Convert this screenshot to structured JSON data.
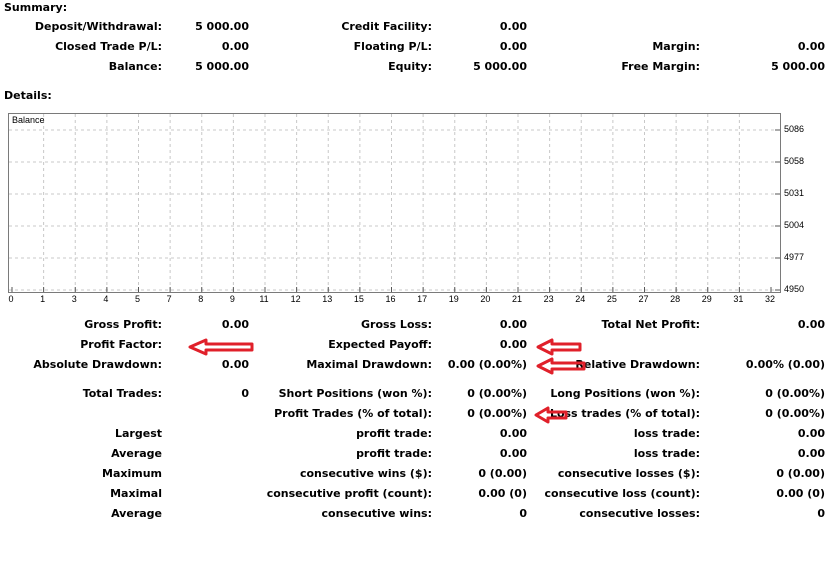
{
  "summary": {
    "title": "Summary:",
    "rows": [
      [
        {
          "label": "Deposit/Withdrawal:",
          "value": "5 000.00"
        },
        {
          "label": "Credit Facility:",
          "value": "0.00"
        },
        {
          "label": "",
          "value": ""
        }
      ],
      [
        {
          "label": "Closed Trade P/L:",
          "value": "0.00"
        },
        {
          "label": "Floating P/L:",
          "value": "0.00"
        },
        {
          "label": "Margin:",
          "value": "0.00"
        }
      ],
      [
        {
          "label": "Balance:",
          "value": "5 000.00"
        },
        {
          "label": "Equity:",
          "value": "5 000.00"
        },
        {
          "label": "Free Margin:",
          "value": "5 000.00"
        }
      ]
    ]
  },
  "details": {
    "title": "Details:"
  },
  "chart_data": {
    "type": "line",
    "legend": "Balance",
    "y_ticks": [
      "5086",
      "5058",
      "5031",
      "5004",
      "4977",
      "4950"
    ],
    "x_ticks": [
      "0",
      "1",
      "3",
      "4",
      "5",
      "7",
      "8",
      "9",
      "11",
      "12",
      "13",
      "15",
      "16",
      "17",
      "19",
      "20",
      "21",
      "23",
      "24",
      "25",
      "27",
      "28",
      "29",
      "31",
      "32"
    ],
    "series": []
  },
  "stats": {
    "rows": [
      [
        {
          "label": "Gross Profit:",
          "value": "0.00"
        },
        {
          "label": "Gross Loss:",
          "value": "0.00"
        },
        {
          "label": "Total Net Profit:",
          "value": "0.00"
        }
      ],
      [
        {
          "label": "Profit Factor:",
          "value": ""
        },
        {
          "label": "Expected Payoff:",
          "value": "0.00"
        },
        {
          "label": "",
          "value": ""
        }
      ],
      [
        {
          "label": "Absolute Drawdown:",
          "value": "0.00"
        },
        {
          "label": "Maximal Drawdown:",
          "value": "0.00 (0.00%)"
        },
        {
          "label": "Relative Drawdown:",
          "value": "0.00% (0.00)"
        }
      ],
      [
        {
          "label": "Total Trades:",
          "value": "0"
        },
        {
          "label": "Short Positions (won %):",
          "value": "0 (0.00%)"
        },
        {
          "label": "Long Positions (won %):",
          "value": "0 (0.00%)"
        }
      ],
      [
        {
          "label": "",
          "value": ""
        },
        {
          "label": "Profit Trades (% of total):",
          "value": "0 (0.00%)"
        },
        {
          "label": "Loss trades (% of total):",
          "value": "0 (0.00%)"
        }
      ],
      [
        {
          "label": "Largest",
          "value": ""
        },
        {
          "label": "profit trade:",
          "value": "0.00"
        },
        {
          "label": "loss trade:",
          "value": "0.00"
        }
      ],
      [
        {
          "label": "Average",
          "value": ""
        },
        {
          "label": "profit trade:",
          "value": "0.00"
        },
        {
          "label": "loss trade:",
          "value": "0.00"
        }
      ],
      [
        {
          "label": "Maximum",
          "value": ""
        },
        {
          "label": "consecutive wins ($):",
          "value": "0 (0.00)"
        },
        {
          "label": "consecutive losses ($):",
          "value": "0 (0.00)"
        }
      ],
      [
        {
          "label": "Maximal",
          "value": ""
        },
        {
          "label": "consecutive profit (count):",
          "value": "0.00 (0)"
        },
        {
          "label": "consecutive loss (count):",
          "value": "0.00 (0)"
        }
      ],
      [
        {
          "label": "Average",
          "value": ""
        },
        {
          "label": "consecutive wins:",
          "value": "0"
        },
        {
          "label": "consecutive losses:",
          "value": "0"
        }
      ]
    ]
  },
  "colors": {
    "annotation_arrow": "#e0202a",
    "grid": "#c8c8c8",
    "border": "#7a7a7a"
  },
  "annotations": [
    "arrow-icon",
    "arrow-icon",
    "arrow-icon",
    "arrow-icon"
  ]
}
